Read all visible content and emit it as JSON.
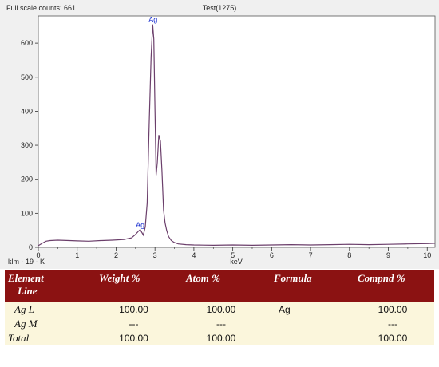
{
  "header": {
    "full_scale": "Full scale counts: 661",
    "title": "Test(1275)",
    "footer_left": "klm - 19 - K",
    "xlabel": "keV"
  },
  "chart_data": {
    "type": "line",
    "title": "Test(1275)",
    "xlabel": "keV",
    "ylabel": "",
    "xlim": [
      0,
      10.2
    ],
    "ylim": [
      0,
      680
    ],
    "x_ticks": [
      "0",
      "1",
      "2",
      "3",
      "4",
      "5",
      "6",
      "7",
      "8",
      "9",
      "10"
    ],
    "y_ticks": [
      "0",
      "100",
      "200",
      "300",
      "400",
      "500",
      "600"
    ],
    "grid": false,
    "legend": "none",
    "series": [
      {
        "color": "#6b3f6b",
        "x": [
          0.0,
          0.1,
          0.2,
          0.3,
          0.5,
          0.8,
          1.0,
          1.3,
          1.6,
          1.9,
          2.2,
          2.4,
          2.5,
          2.58,
          2.62,
          2.66,
          2.7,
          2.75,
          2.8,
          2.85,
          2.9,
          2.94,
          2.97,
          3.0,
          3.03,
          3.06,
          3.1,
          3.14,
          3.18,
          3.22,
          3.26,
          3.3,
          3.35,
          3.42,
          3.5,
          3.6,
          3.8,
          4.0,
          4.5,
          5.0,
          5.5,
          6.0,
          6.5,
          7.0,
          7.5,
          8.0,
          8.5,
          9.0,
          9.5,
          10.0,
          10.2
        ],
        "y": [
          5,
          12,
          18,
          20,
          21,
          20,
          19,
          18,
          20,
          21,
          23,
          28,
          38,
          48,
          52,
          44,
          36,
          60,
          130,
          360,
          560,
          655,
          612,
          400,
          212,
          250,
          330,
          312,
          225,
          110,
          72,
          50,
          32,
          20,
          14,
          10,
          8,
          7,
          6,
          7,
          6,
          7,
          8,
          7,
          8,
          9,
          8,
          9,
          10,
          11,
          12
        ]
      }
    ],
    "annotations": [
      {
        "text": "Ag",
        "x": 2.95,
        "y": 655
      },
      {
        "text": "Ag",
        "x": 2.62,
        "y": 52
      }
    ]
  },
  "table": {
    "headers": [
      {
        "line1": "Element",
        "line2": "Line"
      },
      {
        "line1": "Weight %",
        "line2": ""
      },
      {
        "line1": "Atom %",
        "line2": ""
      },
      {
        "line1": "Formula",
        "line2": ""
      },
      {
        "line1": "Compnd %",
        "line2": ""
      }
    ],
    "rows": [
      {
        "element": "Ag L",
        "weight": "100.00",
        "atom": "100.00",
        "formula": "Ag",
        "compnd": "100.00"
      },
      {
        "element": "Ag M",
        "weight": "---",
        "atom": "---",
        "formula": "",
        "compnd": "---"
      },
      {
        "element": "Total",
        "weight": "100.00",
        "atom": "100.00",
        "formula": "",
        "compnd": "100.00"
      }
    ]
  }
}
